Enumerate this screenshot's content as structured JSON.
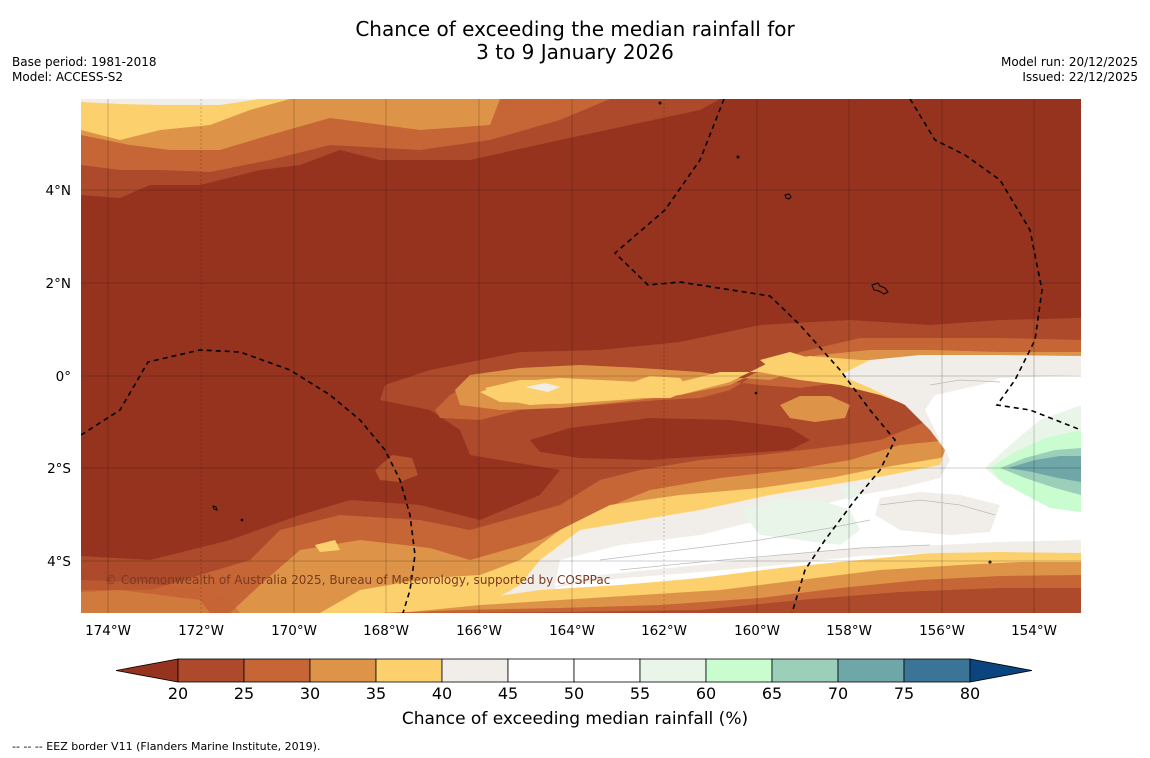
{
  "title": {
    "line1": "Chance of exceeding the median rainfall for",
    "line2": "3 to 9 January 2026"
  },
  "meta_left": {
    "base_period": "Base period: 1981-2018",
    "model": "Model: ACCESS-S2"
  },
  "meta_right": {
    "model_run": "Model run: 20/12/2025",
    "issued": "Issued: 22/12/2025"
  },
  "map": {
    "copyright": "© Commonwealth of Australia 2025, Bureau of Meteorology, supported by COSPPac",
    "lon_labels": [
      "174°W",
      "172°W",
      "170°W",
      "168°W",
      "166°W",
      "164°W",
      "162°W",
      "160°W",
      "158°W",
      "156°W",
      "154°W"
    ],
    "lat_labels": [
      "4°N",
      "2°N",
      "0°",
      "2°S",
      "4°S"
    ]
  },
  "colorbar": {
    "title": "Chance of exceeding median rainfall (%)",
    "ticks": [
      "20",
      "25",
      "30",
      "35",
      "40",
      "45",
      "50",
      "55",
      "60",
      "65",
      "70",
      "75",
      "80"
    ],
    "colors": {
      "lt20": "#96331f",
      "c20": "#ac4a2b",
      "c25": "#c66535",
      "c30": "#de9448",
      "c35": "#fdd06e",
      "c40": "#f1ede8",
      "c45": "#ffffff",
      "c50": "#ffffff",
      "c55": "#e9f5e9",
      "c60": "#c9fdd0",
      "c65": "#9bcfba",
      "c70": "#6fa6a8",
      "c75": "#3a7597",
      "gt80": "#0b4580"
    }
  },
  "footnote": "--  --  -- EEZ border V11 (Flanders Marine Institute, 2019)."
}
